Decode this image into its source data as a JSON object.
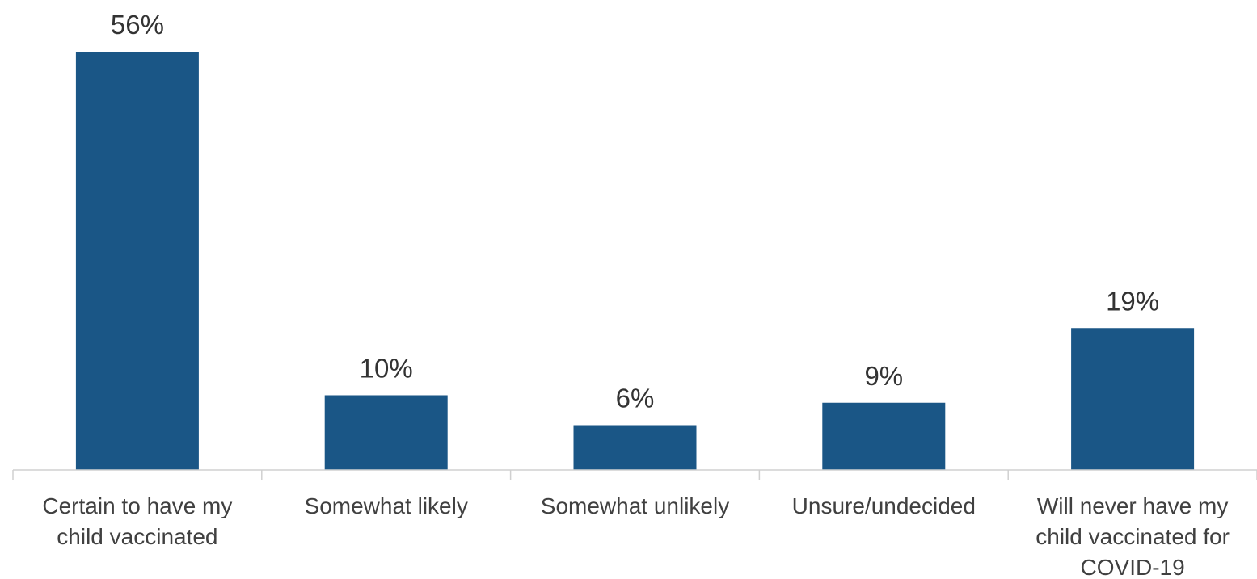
{
  "chart_data": {
    "type": "bar",
    "categories": [
      "Certain to have my child vaccinated",
      "Somewhat likely",
      "Somewhat unlikely",
      "Unsure/undecided",
      "Will never have my child vaccinated for COVID-19"
    ],
    "category_label_lines": [
      [
        "Certain to have my",
        "child vaccinated"
      ],
      [
        "Somewhat likely"
      ],
      [
        "Somewhat unlikely"
      ],
      [
        "Unsure/undecided"
      ],
      [
        "Will never have my",
        "child vaccinated for",
        "COVID-19"
      ]
    ],
    "values": [
      56,
      10,
      6,
      9,
      19
    ],
    "data_labels": [
      "56%",
      "10%",
      "6%",
      "9%",
      "19%"
    ],
    "unit": "%",
    "ylim": [
      0,
      56
    ],
    "grid": false,
    "legend": "none",
    "colors": {
      "bar": "#1a5686",
      "axis": "#d0d0d0",
      "label": "#333333"
    }
  }
}
